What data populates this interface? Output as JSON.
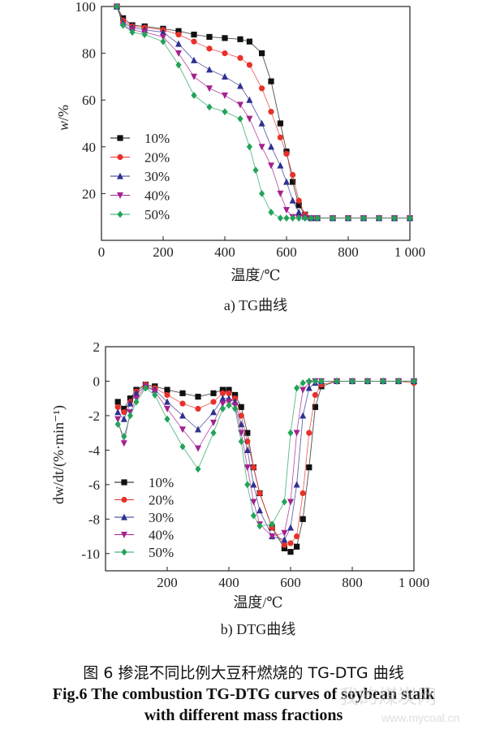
{
  "chart_data": [
    {
      "type": "line",
      "panel_caption": "a) TG曲线",
      "xlabel": "温度/℃",
      "ylabel": "w/%",
      "xlim": [
        0,
        1000
      ],
      "ylim": [
        0,
        100
      ],
      "x_ticks": [
        "0",
        "200",
        "400",
        "600",
        "800",
        "1 000"
      ],
      "y_ticks": [
        "20",
        "40",
        "60",
        "80",
        "100"
      ],
      "legend_position": "middle-left",
      "series": [
        {
          "name": "10%",
          "color": "#111111",
          "marker": "square",
          "x": [
            50,
            70,
            100,
            140,
            200,
            250,
            300,
            350,
            400,
            450,
            480,
            520,
            550,
            580,
            600,
            620,
            640,
            660,
            680,
            700,
            750,
            800,
            850,
            900,
            950,
            1000
          ],
          "y": [
            100,
            95,
            92,
            91.5,
            90.5,
            89.5,
            88,
            87,
            86.5,
            86,
            85,
            80,
            68,
            50,
            38,
            25,
            15,
            11,
            9.5,
            9.5,
            9.5,
            9.5,
            9.5,
            9.5,
            9.5,
            9.5
          ]
        },
        {
          "name": "20%",
          "color": "#e8312a",
          "marker": "circle",
          "x": [
            50,
            70,
            100,
            140,
            200,
            250,
            300,
            350,
            400,
            450,
            480,
            520,
            550,
            580,
            600,
            620,
            640,
            660,
            680,
            700,
            750,
            800,
            850,
            900,
            950,
            1000
          ],
          "y": [
            100,
            94,
            91.5,
            91,
            90,
            88,
            85,
            82,
            80,
            78,
            75,
            65,
            55,
            44,
            37,
            28,
            17,
            11,
            9.5,
            9.5,
            9.5,
            9.5,
            9.5,
            9.5,
            9.5,
            9.5
          ]
        },
        {
          "name": "30%",
          "color": "#2e3191",
          "marker": "triangle-up",
          "x": [
            50,
            70,
            100,
            140,
            200,
            250,
            300,
            350,
            400,
            450,
            480,
            520,
            550,
            580,
            600,
            620,
            640,
            660,
            680,
            700,
            750,
            800,
            850,
            900,
            950,
            1000
          ],
          "y": [
            100,
            93,
            91,
            90,
            89,
            84,
            77,
            73,
            70,
            66,
            60,
            50,
            40,
            32,
            25,
            17,
            12,
            10,
            9.5,
            9.5,
            9.5,
            9.5,
            9.5,
            9.5,
            9.5,
            9.5
          ]
        },
        {
          "name": "40%",
          "color": "#a3228e",
          "marker": "triangle-down",
          "x": [
            50,
            70,
            100,
            140,
            200,
            250,
            300,
            350,
            400,
            450,
            480,
            520,
            550,
            580,
            600,
            620,
            640,
            660,
            680,
            700,
            750,
            800,
            850,
            900,
            950,
            1000
          ],
          "y": [
            100,
            92,
            90,
            89,
            87,
            80,
            70,
            65,
            62,
            58,
            52,
            40,
            32,
            20,
            13,
            10,
            9.5,
            9.5,
            9.5,
            9.5,
            9.5,
            9.5,
            9.5,
            9.5,
            9.5,
            9.5
          ]
        },
        {
          "name": "50%",
          "color": "#22a35a",
          "marker": "diamond",
          "x": [
            50,
            70,
            100,
            140,
            200,
            250,
            300,
            350,
            400,
            450,
            480,
            500,
            520,
            550,
            580,
            600,
            620,
            640,
            660,
            680,
            700,
            750,
            800,
            850,
            900,
            950,
            1000
          ],
          "y": [
            100,
            92,
            89,
            88,
            85,
            75,
            62,
            57,
            55,
            52,
            40,
            30,
            20,
            12,
            9.5,
            9.5,
            9.5,
            9.5,
            9.5,
            9.5,
            9.5,
            9.5,
            9.5,
            9.5,
            9.5,
            9.5,
            9.5
          ]
        }
      ]
    },
    {
      "type": "line",
      "panel_caption": "b) DTG曲线",
      "xlabel": "温度/℃",
      "ylabel": "dw/dt/(%·min⁻¹)",
      "xlim": [
        0,
        1000
      ],
      "ylim": [
        -11,
        2
      ],
      "x_ticks": [
        "200",
        "400",
        "600",
        "800",
        "1 000"
      ],
      "y_ticks": [
        "2",
        "0",
        "-2",
        "-4",
        "-6",
        "-8",
        "-10"
      ],
      "legend_position": "bottom-left",
      "series": [
        {
          "name": "10%",
          "color": "#111111",
          "marker": "square",
          "x": [
            40,
            60,
            80,
            100,
            130,
            160,
            200,
            250,
            300,
            350,
            380,
            400,
            420,
            440,
            460,
            480,
            500,
            540,
            580,
            600,
            620,
            640,
            660,
            680,
            700,
            750,
            800,
            850,
            900,
            950,
            1000
          ],
          "y": [
            -1.2,
            -1.6,
            -1.0,
            -0.5,
            -0.2,
            -0.3,
            -0.5,
            -0.7,
            -0.9,
            -0.7,
            -0.5,
            -0.5,
            -0.8,
            -1.5,
            -3,
            -5,
            -6.5,
            -8.5,
            -9.7,
            -9.9,
            -9.6,
            -8,
            -5,
            -1.5,
            -0.3,
            0,
            0,
            0,
            0,
            0,
            0
          ]
        },
        {
          "name": "20%",
          "color": "#e8312a",
          "marker": "circle",
          "x": [
            40,
            60,
            80,
            100,
            130,
            160,
            200,
            250,
            300,
            350,
            380,
            400,
            420,
            440,
            460,
            480,
            500,
            540,
            580,
            600,
            620,
            640,
            660,
            680,
            700,
            750,
            800,
            850,
            900,
            950,
            1000
          ],
          "y": [
            -1.5,
            -1.8,
            -1.2,
            -0.6,
            -0.2,
            -0.4,
            -0.8,
            -1.3,
            -1.6,
            -1.2,
            -0.7,
            -0.7,
            -1,
            -2,
            -3.5,
            -5,
            -6.5,
            -8.5,
            -9.5,
            -9.4,
            -9,
            -6.5,
            -3,
            -0.8,
            -0.2,
            0,
            0,
            0,
            0,
            0,
            -0.1
          ]
        },
        {
          "name": "30%",
          "color": "#2e3191",
          "marker": "triangle-up",
          "x": [
            40,
            60,
            80,
            100,
            130,
            160,
            200,
            250,
            300,
            350,
            380,
            400,
            420,
            440,
            460,
            480,
            500,
            540,
            580,
            600,
            620,
            640,
            660,
            680,
            700,
            750,
            800,
            850,
            900,
            950,
            1000
          ],
          "y": [
            -1.8,
            -2.2,
            -1.3,
            -0.7,
            -0.3,
            -0.5,
            -1.2,
            -2.0,
            -2.8,
            -1.8,
            -1.0,
            -1.0,
            -1.2,
            -2.5,
            -4,
            -6,
            -7.5,
            -9,
            -9.2,
            -8.5,
            -6,
            -2,
            -0.4,
            -0.1,
            0,
            0,
            0,
            0,
            0,
            0,
            0
          ]
        },
        {
          "name": "40%",
          "color": "#a3228e",
          "marker": "triangle-down",
          "x": [
            40,
            60,
            80,
            100,
            130,
            160,
            200,
            250,
            300,
            350,
            380,
            400,
            420,
            440,
            460,
            480,
            500,
            540,
            580,
            600,
            620,
            640,
            660,
            680,
            700,
            750,
            800,
            850,
            900,
            950,
            1000
          ],
          "y": [
            -2.2,
            -3.6,
            -1.8,
            -1.0,
            -0.3,
            -0.6,
            -1.6,
            -2.8,
            -3.9,
            -2.4,
            -1.3,
            -1.2,
            -1.4,
            -3,
            -5,
            -7,
            -8.3,
            -9,
            -8.8,
            -7,
            -3,
            -0.5,
            -0.1,
            0,
            0,
            0,
            0,
            0,
            0,
            0,
            0
          ]
        },
        {
          "name": "50%",
          "color": "#22a35a",
          "marker": "diamond",
          "x": [
            40,
            60,
            80,
            100,
            130,
            160,
            200,
            250,
            300,
            350,
            380,
            400,
            420,
            440,
            460,
            480,
            500,
            540,
            580,
            600,
            620,
            640,
            660,
            680,
            700,
            750,
            800,
            850,
            900,
            950,
            1000
          ],
          "y": [
            -2.5,
            -3.2,
            -2.0,
            -1.2,
            -0.4,
            -0.8,
            -2.2,
            -3.8,
            -5.1,
            -3,
            -1.6,
            -1.4,
            -1.6,
            -3.5,
            -6,
            -7.8,
            -8.4,
            -8.3,
            -7,
            -3,
            -0.4,
            -0.1,
            0,
            0,
            0,
            0,
            0,
            0,
            0,
            0,
            0
          ]
        }
      ]
    }
  ],
  "caption": {
    "cn": "图 6  掺混不同比例大豆秆燃烧的 TG-DTG 曲线",
    "en_line1": "Fig.6 The combustion TG-DTG curves of soybean stalk",
    "en_line2": "with different mass fractions"
  },
  "watermark": {
    "text": "我的煤炭网",
    "url": "www.mycoal.cn"
  }
}
